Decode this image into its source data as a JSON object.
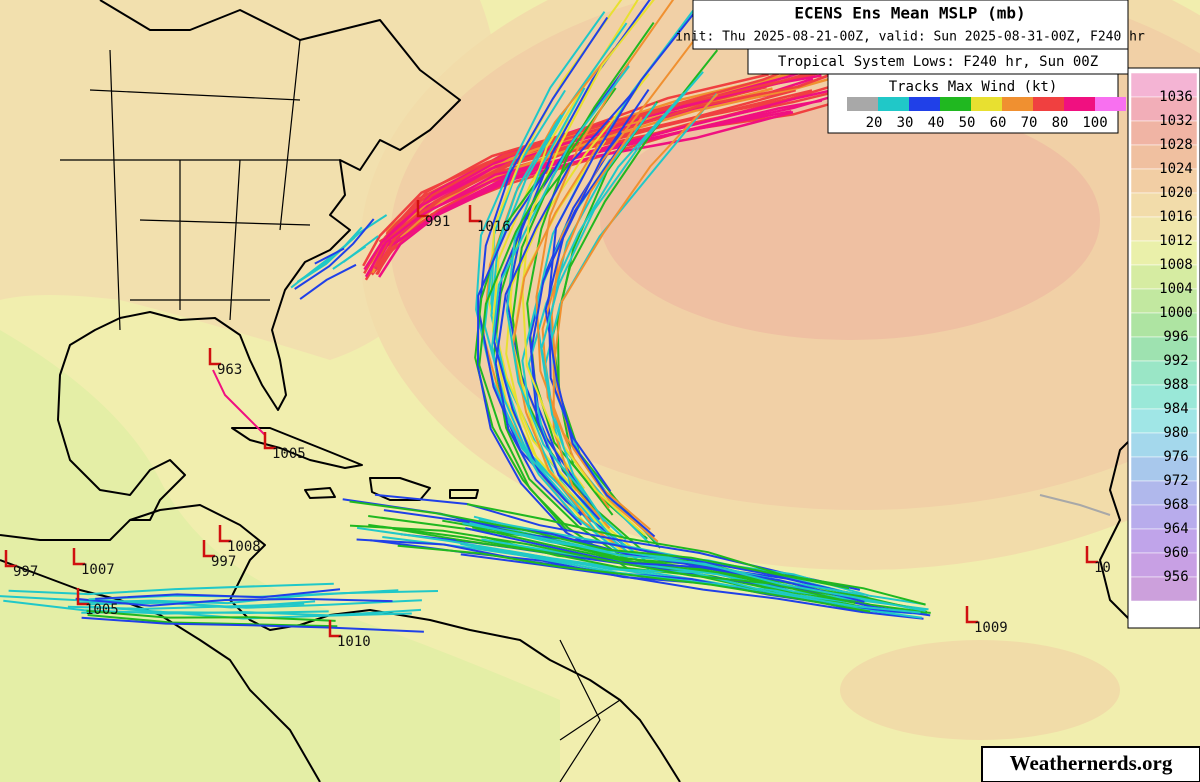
{
  "header": {
    "title": "ECENS Ens Mean MSLP (mb)",
    "subtitle": "init: Thu 2025-08-21-00Z, valid: Sun 2025-08-31-00Z, F240 hr",
    "lows_title": "Tropical System Lows: F240 hr, Sun 00Z"
  },
  "wind_legend": {
    "title": "Tracks Max Wind (kt)",
    "labels": [
      "20",
      "30",
      "40",
      "50",
      "60",
      "70",
      "80",
      "100"
    ],
    "colors": [
      "#a8a8a8",
      "#20c8c8",
      "#2040e8",
      "#20b820",
      "#e8e030",
      "#f09030",
      "#f04040",
      "#f01080",
      "#f870f0"
    ]
  },
  "colorbar": {
    "labels": [
      "1036",
      "1032",
      "1028",
      "1024",
      "1020",
      "1016",
      "1012",
      "1008",
      "1004",
      "1000",
      "996",
      "992",
      "988",
      "984",
      "980",
      "976",
      "972",
      "968",
      "964",
      "960",
      "956"
    ],
    "colors": [
      "#f4b4d4",
      "#f2aeb8",
      "#f0b4a4",
      "#f0c0a0",
      "#f2cea4",
      "#f2dcaa",
      "#f0e6ac",
      "#eaf0aa",
      "#d6eca2",
      "#c2e8a0",
      "#aee4a2",
      "#9ee2b0",
      "#9ae6c6",
      "#9ae8d8",
      "#a0e6e6",
      "#a4d8ec",
      "#a8c8ec",
      "#b0b8ec",
      "#b8acec",
      "#c0a4ea",
      "#c8a0e4",
      "#cca0dc"
    ]
  },
  "lows": [
    "991",
    "1016",
    "963",
    "1005",
    "1008",
    "997",
    "997",
    "1007",
    "1005",
    "1010",
    "1009",
    "10"
  ],
  "watermark": "Weathernerds.org"
}
